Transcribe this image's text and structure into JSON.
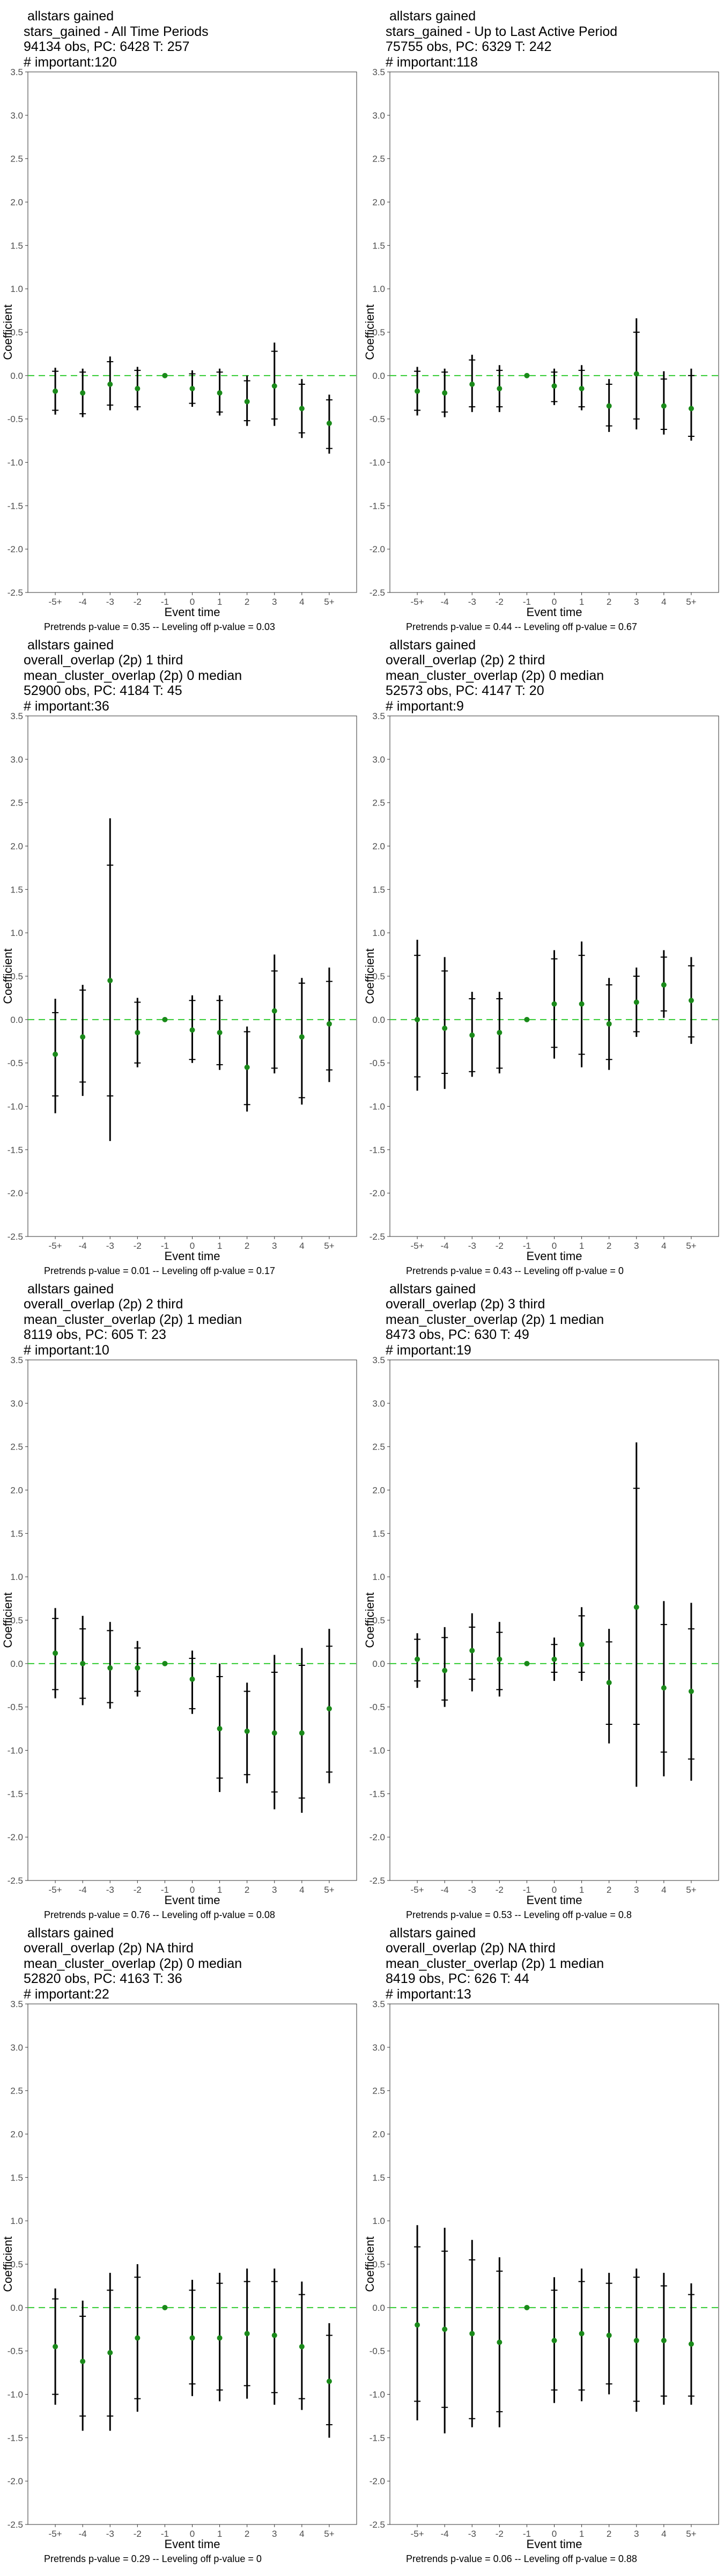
{
  "chart_data": [
    {
      "type": "scatter",
      "title_lines": [
        " allstars gained",
        "stars_gained - All Time Periods",
        "94134 obs, PC: 6428 T: 257",
        "# important:120"
      ],
      "footnote": "Pretrends p-value = 0.35 -- Leveling off p-value = 0.03",
      "xlabel": "Event time",
      "ylabel": "Coefficient",
      "ylim": [
        -2.5,
        3.5
      ],
      "yticks": [
        "-2.5",
        "-2.0",
        "-1.5",
        "-1.0",
        "-0.5",
        "0.0",
        "0.5",
        "1.0",
        "1.5",
        "2.0",
        "2.5",
        "3.0",
        "3.5"
      ],
      "categories": [
        "-5+",
        "-4",
        "-3",
        "-2",
        "-1",
        "0",
        "1",
        "2",
        "3",
        "4",
        "5+"
      ],
      "points": [
        {
          "y": -0.18,
          "lo": -0.45,
          "hi": 0.09,
          "clo": -0.4,
          "chi": 0.05
        },
        {
          "y": -0.2,
          "lo": -0.48,
          "hi": 0.08,
          "clo": -0.44,
          "chi": 0.04
        },
        {
          "y": -0.1,
          "lo": -0.4,
          "hi": 0.22,
          "clo": -0.34,
          "chi": 0.16
        },
        {
          "y": -0.15,
          "lo": -0.4,
          "hi": 0.1,
          "clo": -0.36,
          "chi": 0.06
        },
        {
          "y": 0.0,
          "lo": 0.0,
          "hi": 0.0,
          "clo": 0.0,
          "chi": 0.0
        },
        {
          "y": -0.15,
          "lo": -0.36,
          "hi": 0.06,
          "clo": -0.32,
          "chi": 0.02
        },
        {
          "y": -0.2,
          "lo": -0.46,
          "hi": 0.08,
          "clo": -0.42,
          "chi": 0.04
        },
        {
          "y": -0.3,
          "lo": -0.58,
          "hi": 0.0,
          "clo": -0.52,
          "chi": -0.06
        },
        {
          "y": -0.12,
          "lo": -0.58,
          "hi": 0.38,
          "clo": -0.5,
          "chi": 0.28
        },
        {
          "y": -0.38,
          "lo": -0.72,
          "hi": -0.04,
          "clo": -0.66,
          "chi": -0.1
        },
        {
          "y": -0.55,
          "lo": -0.9,
          "hi": -0.22,
          "clo": -0.84,
          "chi": -0.28
        }
      ]
    },
    {
      "type": "scatter",
      "title_lines": [
        " allstars gained",
        "stars_gained - Up to Last Active Period",
        "75755 obs, PC: 6329 T: 242",
        "# important:118"
      ],
      "footnote": "Pretrends p-value = 0.44 -- Leveling off p-value = 0.67",
      "xlabel": "Event time",
      "ylabel": "Coefficient",
      "ylim": [
        -2.5,
        3.5
      ],
      "yticks": [
        "-2.5",
        "-2.0",
        "-1.5",
        "-1.0",
        "-0.5",
        "0.0",
        "0.5",
        "1.0",
        "1.5",
        "2.0",
        "2.5",
        "3.0",
        "3.5"
      ],
      "categories": [
        "-5+",
        "-4",
        "-3",
        "-2",
        "-1",
        "0",
        "1",
        "2",
        "3",
        "4",
        "5+"
      ],
      "points": [
        {
          "y": -0.18,
          "lo": -0.46,
          "hi": 0.1,
          "clo": -0.4,
          "chi": 0.05
        },
        {
          "y": -0.2,
          "lo": -0.48,
          "hi": 0.08,
          "clo": -0.42,
          "chi": 0.04
        },
        {
          "y": -0.1,
          "lo": -0.42,
          "hi": 0.24,
          "clo": -0.36,
          "chi": 0.18
        },
        {
          "y": -0.15,
          "lo": -0.42,
          "hi": 0.12,
          "clo": -0.36,
          "chi": 0.06
        },
        {
          "y": 0.0,
          "lo": 0.0,
          "hi": 0.0,
          "clo": 0.0,
          "chi": 0.0
        },
        {
          "y": -0.12,
          "lo": -0.34,
          "hi": 0.08,
          "clo": -0.3,
          "chi": 0.04
        },
        {
          "y": -0.15,
          "lo": -0.4,
          "hi": 0.12,
          "clo": -0.36,
          "chi": 0.06
        },
        {
          "y": -0.35,
          "lo": -0.65,
          "hi": -0.04,
          "clo": -0.58,
          "chi": -0.1
        },
        {
          "y": 0.02,
          "lo": -0.62,
          "hi": 0.66,
          "clo": -0.5,
          "chi": 0.5
        },
        {
          "y": -0.35,
          "lo": -0.68,
          "hi": 0.05,
          "clo": -0.62,
          "chi": -0.04
        },
        {
          "y": -0.38,
          "lo": -0.75,
          "hi": 0.08,
          "clo": -0.7,
          "chi": 0.0
        }
      ]
    },
    {
      "type": "scatter",
      "title_lines": [
        " allstars gained",
        "overall_overlap (2p) 1 third",
        "mean_cluster_overlap (2p) 0 median",
        "52900 obs, PC: 4184 T: 45",
        "# important:36"
      ],
      "footnote": "Pretrends p-value = 0.01 -- Leveling off p-value = 0.17",
      "xlabel": "Event time",
      "ylabel": "Coefficient",
      "ylim": [
        -2.5,
        3.5
      ],
      "yticks": [
        "-2.5",
        "-2.0",
        "-1.5",
        "-1.0",
        "-0.5",
        "0.0",
        "0.5",
        "1.0",
        "1.5",
        "2.0",
        "2.5",
        "3.0",
        "3.5"
      ],
      "categories": [
        "-5+",
        "-4",
        "-3",
        "-2",
        "-1",
        "0",
        "1",
        "2",
        "3",
        "4",
        "5+"
      ],
      "points": [
        {
          "y": -0.4,
          "lo": -1.08,
          "hi": 0.24,
          "clo": -0.88,
          "chi": 0.08
        },
        {
          "y": -0.2,
          "lo": -0.88,
          "hi": 0.4,
          "clo": -0.72,
          "chi": 0.34
        },
        {
          "y": 0.45,
          "lo": -1.4,
          "hi": 2.32,
          "clo": -0.88,
          "chi": 1.78
        },
        {
          "y": -0.15,
          "lo": -0.55,
          "hi": 0.25,
          "clo": -0.5,
          "chi": 0.2
        },
        {
          "y": 0.0,
          "lo": 0.0,
          "hi": 0.0,
          "clo": 0.0,
          "chi": 0.0
        },
        {
          "y": -0.12,
          "lo": -0.5,
          "hi": 0.28,
          "clo": -0.46,
          "chi": 0.22
        },
        {
          "y": -0.15,
          "lo": -0.58,
          "hi": 0.28,
          "clo": -0.52,
          "chi": 0.22
        },
        {
          "y": -0.55,
          "lo": -1.06,
          "hi": -0.08,
          "clo": -0.98,
          "chi": -0.14
        },
        {
          "y": 0.1,
          "lo": -0.62,
          "hi": 0.75,
          "clo": -0.56,
          "chi": 0.56
        },
        {
          "y": -0.2,
          "lo": -0.98,
          "hi": 0.48,
          "clo": -0.9,
          "chi": 0.42
        },
        {
          "y": -0.05,
          "lo": -0.72,
          "hi": 0.6,
          "clo": -0.58,
          "chi": 0.44
        }
      ]
    },
    {
      "type": "scatter",
      "title_lines": [
        " allstars gained",
        "overall_overlap (2p) 2 third",
        "mean_cluster_overlap (2p) 0 median",
        "52573 obs, PC: 4147 T: 20",
        "# important:9"
      ],
      "footnote": "Pretrends p-value = 0.43 -- Leveling off p-value = 0",
      "xlabel": "Event time",
      "ylabel": "Coefficient",
      "ylim": [
        -2.5,
        3.5
      ],
      "yticks": [
        "-2.5",
        "-2.0",
        "-1.5",
        "-1.0",
        "-0.5",
        "0.0",
        "0.5",
        "1.0",
        "1.5",
        "2.0",
        "2.5",
        "3.0",
        "3.5"
      ],
      "categories": [
        "-5+",
        "-4",
        "-3",
        "-2",
        "-1",
        "0",
        "1",
        "2",
        "3",
        "4",
        "5+"
      ],
      "points": [
        {
          "y": 0.0,
          "lo": -0.82,
          "hi": 0.92,
          "clo": -0.66,
          "chi": 0.74
        },
        {
          "y": -0.1,
          "lo": -0.8,
          "hi": 0.72,
          "clo": -0.62,
          "chi": 0.56
        },
        {
          "y": -0.18,
          "lo": -0.66,
          "hi": 0.32,
          "clo": -0.6,
          "chi": 0.24
        },
        {
          "y": -0.15,
          "lo": -0.62,
          "hi": 0.32,
          "clo": -0.56,
          "chi": 0.24
        },
        {
          "y": 0.0,
          "lo": 0.0,
          "hi": 0.0,
          "clo": 0.0,
          "chi": 0.0
        },
        {
          "y": 0.18,
          "lo": -0.45,
          "hi": 0.8,
          "clo": -0.32,
          "chi": 0.7
        },
        {
          "y": 0.18,
          "lo": -0.55,
          "hi": 0.9,
          "clo": -0.4,
          "chi": 0.74
        },
        {
          "y": -0.05,
          "lo": -0.58,
          "hi": 0.48,
          "clo": -0.46,
          "chi": 0.4
        },
        {
          "y": 0.2,
          "lo": -0.2,
          "hi": 0.6,
          "clo": -0.14,
          "chi": 0.5
        },
        {
          "y": 0.4,
          "lo": 0.02,
          "hi": 0.8,
          "clo": 0.1,
          "chi": 0.72
        },
        {
          "y": 0.22,
          "lo": -0.28,
          "hi": 0.72,
          "clo": -0.2,
          "chi": 0.62
        }
      ]
    },
    {
      "type": "scatter",
      "title_lines": [
        " allstars gained",
        "overall_overlap (2p) 2 third",
        "mean_cluster_overlap (2p) 1 median",
        "8119 obs, PC: 605 T: 23",
        "# important:10"
      ],
      "footnote": "Pretrends p-value = 0.76 -- Leveling off p-value = 0.08",
      "xlabel": "Event time",
      "ylabel": "Coefficient",
      "ylim": [
        -2.5,
        3.5
      ],
      "yticks": [
        "-2.5",
        "-2.0",
        "-1.5",
        "-1.0",
        "-0.5",
        "0.0",
        "0.5",
        "1.0",
        "1.5",
        "2.0",
        "2.5",
        "3.0",
        "3.5"
      ],
      "categories": [
        "-5+",
        "-4",
        "-3",
        "-2",
        "-1",
        "0",
        "1",
        "2",
        "3",
        "4",
        "5+"
      ],
      "points": [
        {
          "y": 0.12,
          "lo": -0.4,
          "hi": 0.64,
          "clo": -0.3,
          "chi": 0.52
        },
        {
          "y": 0.0,
          "lo": -0.48,
          "hi": 0.55,
          "clo": -0.4,
          "chi": 0.4
        },
        {
          "y": -0.05,
          "lo": -0.52,
          "hi": 0.48,
          "clo": -0.45,
          "chi": 0.38
        },
        {
          "y": -0.05,
          "lo": -0.38,
          "hi": 0.26,
          "clo": -0.32,
          "chi": 0.18
        },
        {
          "y": 0.0,
          "lo": 0.0,
          "hi": 0.0,
          "clo": 0.0,
          "chi": 0.0
        },
        {
          "y": -0.18,
          "lo": -0.58,
          "hi": 0.15,
          "clo": -0.52,
          "chi": 0.06
        },
        {
          "y": -0.75,
          "lo": -1.48,
          "hi": 0.0,
          "clo": -1.32,
          "chi": -0.15
        },
        {
          "y": -0.78,
          "lo": -1.38,
          "hi": -0.22,
          "clo": -1.28,
          "chi": -0.32
        },
        {
          "y": -0.8,
          "lo": -1.68,
          "hi": 0.1,
          "clo": -1.48,
          "chi": -0.1
        },
        {
          "y": -0.8,
          "lo": -1.72,
          "hi": 0.18,
          "clo": -1.55,
          "chi": -0.02
        },
        {
          "y": -0.52,
          "lo": -1.38,
          "hi": 0.4,
          "clo": -1.25,
          "chi": 0.2
        }
      ]
    },
    {
      "type": "scatter",
      "title_lines": [
        " allstars gained",
        "overall_overlap (2p) 3 third",
        "mean_cluster_overlap (2p) 1 median",
        "8473 obs, PC: 630 T: 49",
        "# important:19"
      ],
      "footnote": "Pretrends p-value = 0.53 -- Leveling off p-value = 0.8",
      "xlabel": "Event time",
      "ylabel": "Coefficient",
      "ylim": [
        -2.5,
        3.5
      ],
      "yticks": [
        "-2.5",
        "-2.0",
        "-1.5",
        "-1.0",
        "-0.5",
        "0.0",
        "0.5",
        "1.0",
        "1.5",
        "2.0",
        "2.5",
        "3.0",
        "3.5"
      ],
      "categories": [
        "-5+",
        "-4",
        "-3",
        "-2",
        "-1",
        "0",
        "1",
        "2",
        "3",
        "4",
        "5+"
      ],
      "points": [
        {
          "y": 0.05,
          "lo": -0.28,
          "hi": 0.35,
          "clo": -0.2,
          "chi": 0.28
        },
        {
          "y": -0.08,
          "lo": -0.5,
          "hi": 0.42,
          "clo": -0.42,
          "chi": 0.3
        },
        {
          "y": 0.15,
          "lo": -0.32,
          "hi": 0.58,
          "clo": -0.18,
          "chi": 0.42
        },
        {
          "y": 0.05,
          "lo": -0.38,
          "hi": 0.48,
          "clo": -0.3,
          "chi": 0.36
        },
        {
          "y": 0.0,
          "lo": 0.0,
          "hi": 0.0,
          "clo": 0.0,
          "chi": 0.0
        },
        {
          "y": 0.05,
          "lo": -0.2,
          "hi": 0.3,
          "clo": -0.1,
          "chi": 0.22
        },
        {
          "y": 0.22,
          "lo": -0.2,
          "hi": 0.65,
          "clo": -0.1,
          "chi": 0.55
        },
        {
          "y": -0.22,
          "lo": -0.92,
          "hi": 0.4,
          "clo": -0.7,
          "chi": 0.25
        },
        {
          "y": 0.65,
          "lo": -1.42,
          "hi": 2.55,
          "clo": -0.7,
          "chi": 2.02
        },
        {
          "y": -0.28,
          "lo": -1.3,
          "hi": 0.72,
          "clo": -1.02,
          "chi": 0.45
        },
        {
          "y": -0.32,
          "lo": -1.35,
          "hi": 0.7,
          "clo": -1.1,
          "chi": 0.4
        }
      ]
    },
    {
      "type": "scatter",
      "title_lines": [
        " allstars gained",
        "overall_overlap (2p) NA third",
        "mean_cluster_overlap (2p) 0 median",
        "52820 obs, PC: 4163 T: 36",
        "# important:22"
      ],
      "footnote": "Pretrends p-value = 0.29 -- Leveling off p-value = 0",
      "xlabel": "Event time",
      "ylabel": "Coefficient",
      "ylim": [
        -2.5,
        3.5
      ],
      "yticks": [
        "-2.5",
        "-2.0",
        "-1.5",
        "-1.0",
        "-0.5",
        "0.0",
        "0.5",
        "1.0",
        "1.5",
        "2.0",
        "2.5",
        "3.0",
        "3.5"
      ],
      "categories": [
        "-5+",
        "-4",
        "-3",
        "-2",
        "-1",
        "0",
        "1",
        "2",
        "3",
        "4",
        "5+"
      ],
      "points": [
        {
          "y": -0.45,
          "lo": -1.12,
          "hi": 0.22,
          "clo": -1.0,
          "chi": 0.1
        },
        {
          "y": -0.62,
          "lo": -1.42,
          "hi": 0.08,
          "clo": -1.25,
          "chi": -0.1
        },
        {
          "y": -0.52,
          "lo": -1.42,
          "hi": 0.4,
          "clo": -1.25,
          "chi": 0.2
        },
        {
          "y": -0.35,
          "lo": -1.2,
          "hi": 0.5,
          "clo": -1.05,
          "chi": 0.35
        },
        {
          "y": 0.0,
          "lo": 0.0,
          "hi": 0.0,
          "clo": 0.0,
          "chi": 0.0
        },
        {
          "y": -0.35,
          "lo": -1.02,
          "hi": 0.32,
          "clo": -0.88,
          "chi": 0.2
        },
        {
          "y": -0.35,
          "lo": -1.08,
          "hi": 0.4,
          "clo": -0.95,
          "chi": 0.28
        },
        {
          "y": -0.3,
          "lo": -1.05,
          "hi": 0.45,
          "clo": -0.9,
          "chi": 0.3
        },
        {
          "y": -0.32,
          "lo": -1.12,
          "hi": 0.45,
          "clo": -0.98,
          "chi": 0.3
        },
        {
          "y": -0.45,
          "lo": -1.18,
          "hi": 0.3,
          "clo": -1.05,
          "chi": 0.15
        },
        {
          "y": -0.85,
          "lo": -1.5,
          "hi": -0.18,
          "clo": -1.35,
          "chi": -0.32
        }
      ]
    },
    {
      "type": "scatter",
      "title_lines": [
        " allstars gained",
        "overall_overlap (2p) NA third",
        "mean_cluster_overlap (2p) 1 median",
        "8419 obs, PC: 626 T: 44",
        "# important:13"
      ],
      "footnote": "Pretrends p-value = 0.06 -- Leveling off p-value = 0.88",
      "xlabel": "Event time",
      "ylabel": "Coefficient",
      "ylim": [
        -2.5,
        3.5
      ],
      "yticks": [
        "-2.5",
        "-2.0",
        "-1.5",
        "-1.0",
        "-0.5",
        "0.0",
        "0.5",
        "1.0",
        "1.5",
        "2.0",
        "2.5",
        "3.0",
        "3.5"
      ],
      "categories": [
        "-5+",
        "-4",
        "-3",
        "-2",
        "-1",
        "0",
        "1",
        "2",
        "3",
        "4",
        "5+"
      ],
      "points": [
        {
          "y": -0.2,
          "lo": -1.3,
          "hi": 0.95,
          "clo": -1.08,
          "chi": 0.7
        },
        {
          "y": -0.25,
          "lo": -1.45,
          "hi": 0.92,
          "clo": -1.15,
          "chi": 0.65
        },
        {
          "y": -0.3,
          "lo": -1.38,
          "hi": 0.78,
          "clo": -1.28,
          "chi": 0.55
        },
        {
          "y": -0.4,
          "lo": -1.38,
          "hi": 0.58,
          "clo": -1.2,
          "chi": 0.42
        },
        {
          "y": 0.0,
          "lo": 0.0,
          "hi": 0.0,
          "clo": 0.0,
          "chi": 0.0
        },
        {
          "y": -0.38,
          "lo": -1.1,
          "hi": 0.35,
          "clo": -0.95,
          "chi": 0.2
        },
        {
          "y": -0.3,
          "lo": -1.08,
          "hi": 0.45,
          "clo": -0.95,
          "chi": 0.3
        },
        {
          "y": -0.32,
          "lo": -1.0,
          "hi": 0.4,
          "clo": -0.88,
          "chi": 0.28
        },
        {
          "y": -0.38,
          "lo": -1.2,
          "hi": 0.45,
          "clo": -1.08,
          "chi": 0.35
        },
        {
          "y": -0.38,
          "lo": -1.12,
          "hi": 0.4,
          "clo": -1.02,
          "chi": 0.25
        },
        {
          "y": -0.42,
          "lo": -1.12,
          "hi": 0.28,
          "clo": -1.02,
          "chi": 0.15
        }
      ]
    }
  ]
}
